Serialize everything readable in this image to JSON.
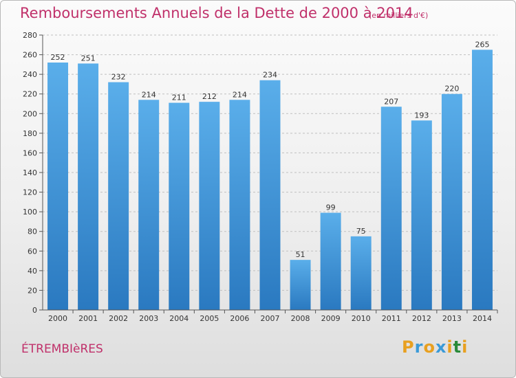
{
  "header": {
    "title": "Remboursements Annuels de la Dette de 2000 à 2014",
    "unit": "(en milliers d'€)"
  },
  "footer": {
    "commune": "ÉTREMBIèRES",
    "logo_text": "Proxiti",
    "logo_colors": [
      "#e8a020",
      "#3a9ad8",
      "#e8a020",
      "#3a9ad8",
      "#e8a020",
      "#2a8a3a",
      "#e8a020"
    ]
  },
  "colors": {
    "bar_top": "#5aaeea",
    "bar_bottom": "#2a79c0",
    "title": "#c0306a",
    "grid": "#bfbfbf",
    "axis": "#555555",
    "label": "#333333"
  },
  "chart_data": {
    "type": "bar",
    "title": "Remboursements Annuels de la Dette de 2000 à 2014",
    "xlabel": "",
    "ylabel": "",
    "categories": [
      "2000",
      "2001",
      "2002",
      "2003",
      "2004",
      "2005",
      "2006",
      "2007",
      "2008",
      "2009",
      "2010",
      "2011",
      "2012",
      "2013",
      "2014"
    ],
    "values": [
      252,
      251,
      232,
      214,
      211,
      212,
      214,
      234,
      51,
      99,
      75,
      207,
      193,
      220,
      265
    ],
    "ylim": [
      0,
      280
    ],
    "yticks": [
      0,
      20,
      40,
      60,
      80,
      100,
      120,
      140,
      160,
      180,
      200,
      220,
      240,
      260,
      280
    ],
    "grid": true,
    "data_labels": true
  }
}
